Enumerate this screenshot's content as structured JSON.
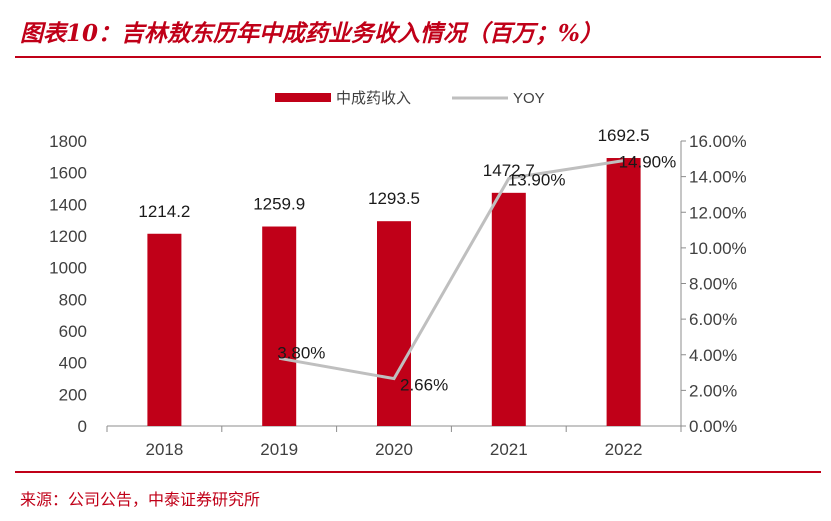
{
  "title": "图表10：吉林敖东历年中成药业务收入情况（百万；%）",
  "source": "来源：公司公告，中泰证券研究所",
  "colors": {
    "accent": "#c00018",
    "bar": "#c00018",
    "line": "#bfbfbf"
  },
  "chart_data": {
    "type": "bar",
    "categories": [
      "2018",
      "2019",
      "2020",
      "2021",
      "2022"
    ],
    "series": [
      {
        "name": "中成药收入",
        "type": "bar",
        "axis": "left",
        "values": [
          1214.2,
          1259.9,
          1293.5,
          1472.7,
          1692.5
        ],
        "labels": [
          "1214.2",
          "1259.9",
          "1293.5",
          "1472.7",
          "1692.5"
        ]
      },
      {
        "name": "YOY",
        "type": "line",
        "axis": "right",
        "values": [
          null,
          3.8,
          2.66,
          13.9,
          14.9
        ],
        "labels": [
          "",
          "3.80%",
          "2.66%",
          "13.90%",
          "14.90%"
        ]
      }
    ],
    "y_left": {
      "ylim": [
        0,
        1800
      ],
      "ticks": [
        "0",
        "200",
        "400",
        "600",
        "800",
        "1000",
        "1200",
        "1400",
        "1600",
        "1800"
      ]
    },
    "y_right": {
      "ylim": [
        0,
        16
      ],
      "ticks": [
        "0.00%",
        "2.00%",
        "4.00%",
        "6.00%",
        "8.00%",
        "10.00%",
        "12.00%",
        "14.00%",
        "16.00%"
      ]
    },
    "legend_position": "top-center",
    "grid": false
  }
}
